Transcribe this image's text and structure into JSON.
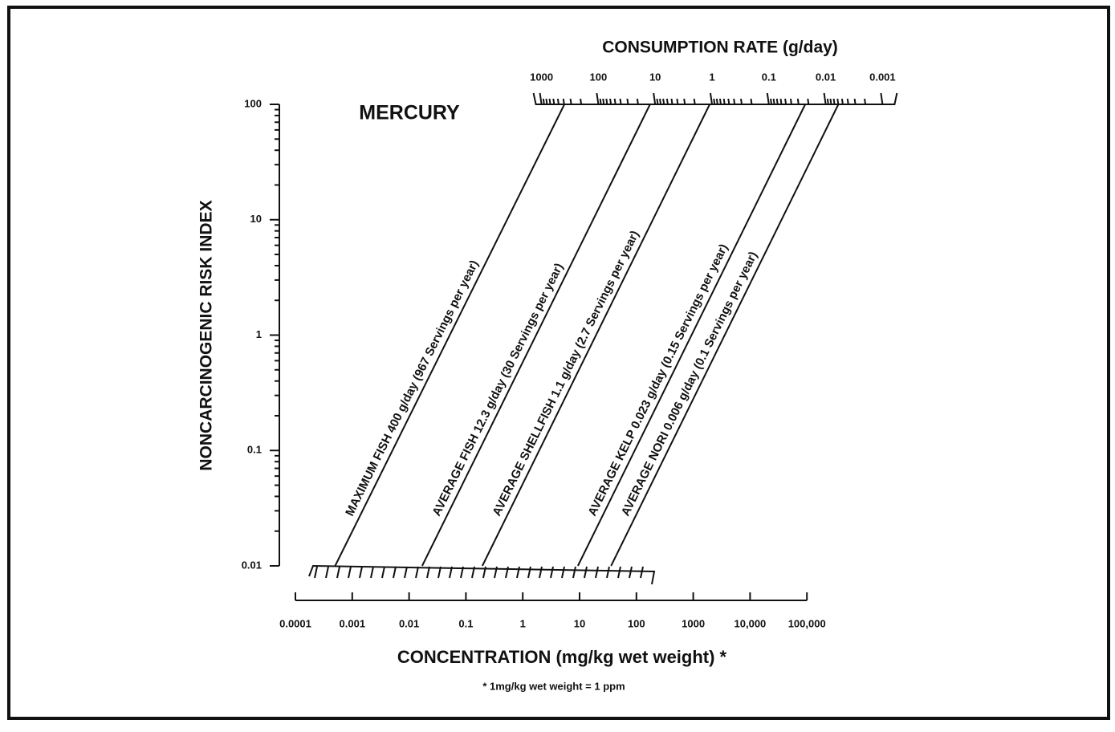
{
  "chart_data": {
    "type": "nomogram",
    "title": "MERCURY",
    "ylabel": "NONCARCINOGENIC RISK INDEX",
    "xlabel": "CONCENTRATION (mg/kg wet weight) *",
    "x2label": "CONSUMPTION RATE (g/day)",
    "footnote": "* 1mg/kg wet weight = 1 ppm",
    "log_x": true,
    "log_y": true,
    "color": "#111111",
    "xlim": [
      0.0001,
      1000000
    ],
    "xticks": [
      0.0001,
      0.001,
      0.01,
      0.1,
      1,
      10,
      100,
      1000,
      {
        "value": 10000,
        "label": "10,000"
      },
      {
        "value": 100000,
        "label": "100,000"
      }
    ],
    "x2lim": [
      21400000,
      0.00214
    ],
    "x2ticks": [
      1000,
      100,
      10,
      1,
      0.1,
      0.01,
      0.001
    ],
    "ylim": [
      0.01,
      100
    ],
    "yticks": [
      100,
      10,
      1,
      0.1,
      0.01
    ],
    "series": [
      {
        "name": "MAXIMUM FISH 400 g/day (967 Servings per year)",
        "color": "#111111",
        "x": [
          0.0005,
          5.4
        ],
        "values": [
          0.01,
          100
        ]
      },
      {
        "name": "AVERAGE FISH 12.3 g/day (30 Servings per year)",
        "color": "#111111",
        "x": [
          0.017,
          174
        ],
        "values": [
          0.01,
          100
        ]
      },
      {
        "name": "AVERAGE SHELLFISH 1.1 g/day (2.7 Servings per year)",
        "color": "#111111",
        "x": [
          0.195,
          1950
        ],
        "values": [
          0.01,
          100
        ]
      },
      {
        "name": "AVERAGE KELP 0.023 g/day (0.15 Servings per year)",
        "color": "#111111",
        "x": [
          9.33,
          93300
        ],
        "values": [
          0.01,
          100
        ]
      },
      {
        "name": "AVERAGE NORI 0.006 g/day (0.1 Servings per year)",
        "color": "#111111",
        "x": [
          35.8,
          358000
        ],
        "values": [
          0.01,
          100
        ]
      }
    ]
  }
}
